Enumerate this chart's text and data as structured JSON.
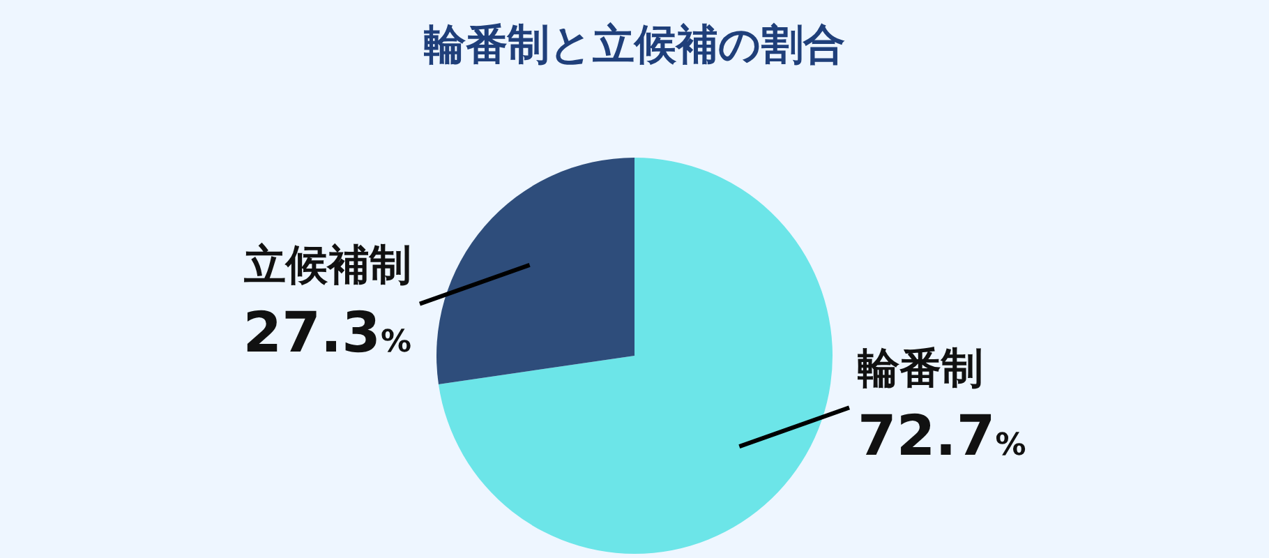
{
  "chart_data": {
    "type": "pie",
    "title": "輪番制と立候補の割合",
    "categories": [
      "輪番制",
      "立候補制"
    ],
    "values": [
      72.7,
      27.3
    ],
    "value_labels": [
      "72.7%",
      "27.3%"
    ],
    "colors": [
      "#6ce5e8",
      "#2e4d7b"
    ]
  }
}
